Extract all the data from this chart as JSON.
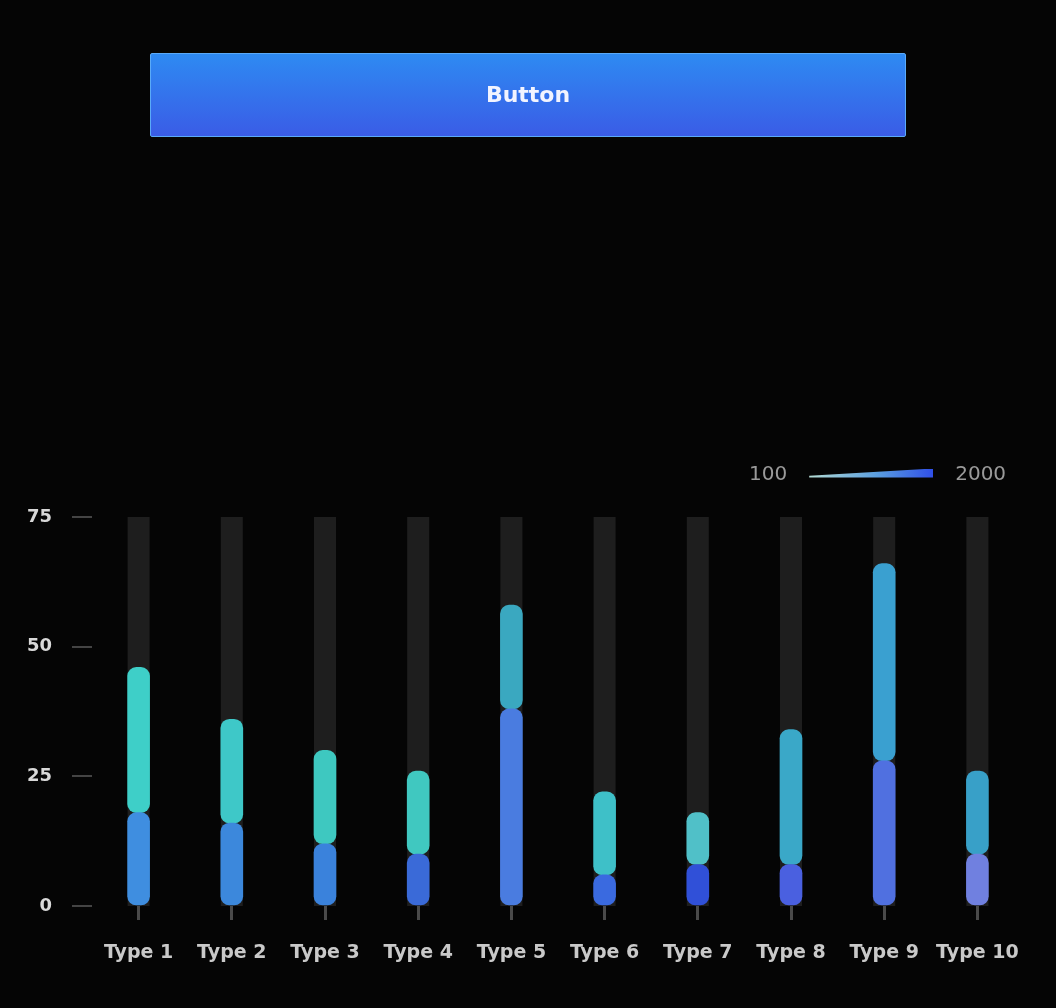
{
  "chart_data": {
    "type": "bar",
    "stacked": true,
    "categories": [
      "Type 1",
      "Type 2",
      "Type 3",
      "Type 4",
      "Type 5",
      "Type 6",
      "Type 7",
      "Type 8",
      "Type 9",
      "Type 10"
    ],
    "series": [
      {
        "colors": [
          "#3f8ee0",
          "#3c88dc",
          "#3a82dc",
          "#3a6ad8",
          "#4a7ce0",
          "#3a6ae0",
          "#3050d8",
          "#4a60e0",
          "#5070e0",
          "#7080e0"
        ],
        "values": [
          18,
          16,
          12,
          10,
          38,
          6,
          8,
          8,
          28,
          10
        ]
      },
      {
        "colors": [
          "#3ecfc8",
          "#3ec8c8",
          "#3ec8c0",
          "#40c8c0",
          "#3aa8c0",
          "#3ec0c8",
          "#50c0c8",
          "#3aa8c8",
          "#3aa0d0",
          "#38a0c8"
        ],
        "values": [
          28,
          20,
          18,
          16,
          20,
          16,
          10,
          26,
          38,
          16
        ]
      }
    ],
    "ylim": [
      0,
      75
    ],
    "yticks": [
      0,
      25,
      50,
      75
    ],
    "annotations": [
      "Button",
      "100",
      "2000"
    ]
  }
}
